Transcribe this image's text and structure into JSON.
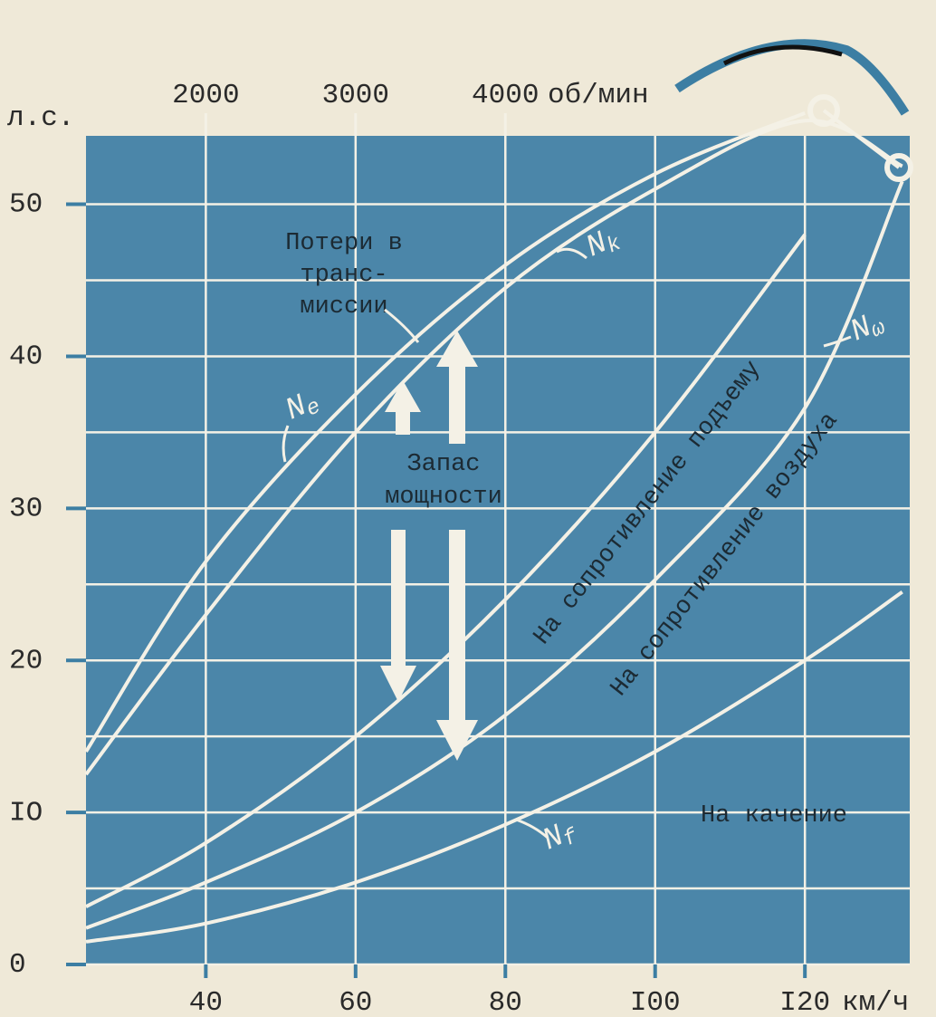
{
  "chart_data": {
    "type": "line",
    "x": [
      24,
      40,
      60,
      80,
      100,
      120,
      133
    ],
    "series": [
      {
        "name": "Ne",
        "color": "#f4f1e6",
        "values": [
          14,
          26.5,
          37.5,
          46,
          52,
          56,
          null
        ]
      },
      {
        "name": "Nk",
        "color": "#f4f1e6",
        "values": [
          12.5,
          23,
          35,
          44.5,
          51,
          55.5,
          52.5
        ]
      },
      {
        "color": "#f4f1e6",
        "values": [
          3.8,
          8,
          15,
          24,
          35,
          48,
          null
        ]
      },
      {
        "name": "Nω",
        "color": "#f4f1e6",
        "values": [
          2.4,
          5.4,
          10,
          16.4,
          25.3,
          36.6,
          51.5
        ]
      },
      {
        "name": "Nf",
        "color": "#f4f1e6",
        "values": [
          1.5,
          2.7,
          5.4,
          9.2,
          14,
          20,
          24.5
        ]
      }
    ],
    "xlim": [
      24,
      134
    ],
    "xticks": [
      40,
      60,
      80,
      {
        "value": 100,
        "label": "I00"
      },
      {
        "value": 120,
        "label": "I20"
      }
    ],
    "x_label": "км/ч",
    "x2lim": [
      1200,
      6700
    ],
    "x2ticks": [
      2000,
      3000,
      4000
    ],
    "x2_label": "об/мин",
    "ylim": [
      0,
      54.5
    ],
    "yticks": [
      0,
      {
        "value": 10,
        "label": "IO"
      },
      20,
      30,
      40,
      50
    ],
    "yminor": [
      5,
      15,
      25,
      35,
      45
    ],
    "y_label": "л.с.",
    "grid": true,
    "plot_color": "#4b86a9",
    "annotations": {
      "transmission_loss": [
        "Потери в",
        "транс-",
        "миссии"
      ],
      "power_reserve": [
        "Запас",
        "мощности"
      ],
      "climb": "На сопротивление подъему",
      "air": "На сопротивление воздуха",
      "rolling": "На качение"
    }
  }
}
